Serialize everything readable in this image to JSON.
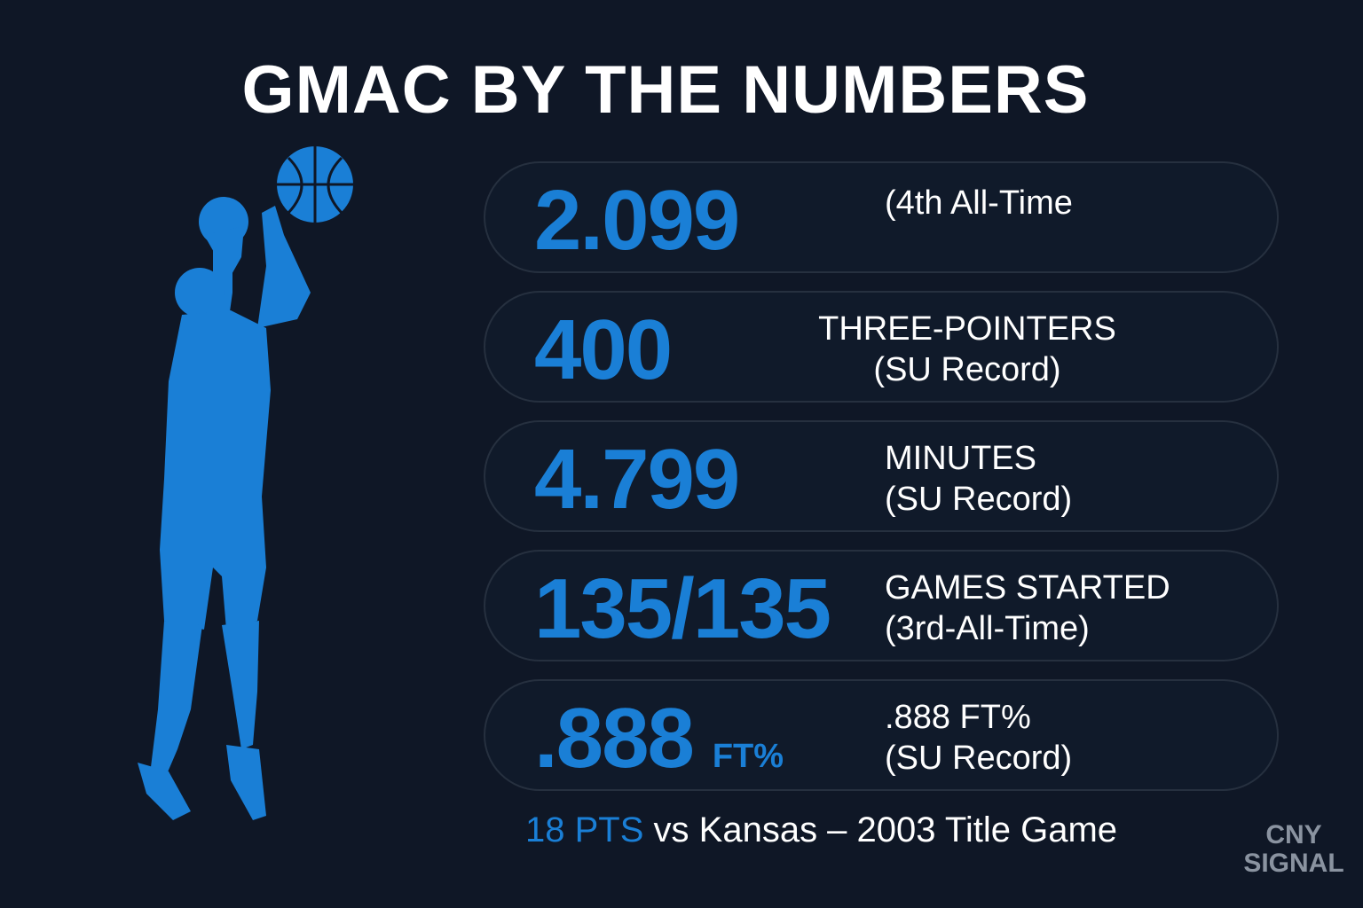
{
  "title": "GMAC BY THE NUMBERS",
  "stats": [
    {
      "value": "2.099",
      "lines": [
        "(4th All-Time"
      ]
    },
    {
      "value": "400",
      "lines": [
        "THREE-POINTERS",
        "(SU Record)"
      ]
    },
    {
      "value": "4.799",
      "lines": [
        "MINUTES",
        "(SU Record)"
      ]
    },
    {
      "value": "135/135",
      "lines": [
        "GAMES STARTED",
        "(3rd-All-Time)"
      ]
    },
    {
      "value": ".888",
      "unit": "FT%",
      "lines": [
        ".888 FT%",
        "(SU Record)"
      ]
    }
  ],
  "footer": {
    "highlight": "18 PTS",
    "text": "vs Kansas – 2003 Title Game"
  },
  "watermark": [
    "CNY",
    "SIGNAL"
  ]
}
